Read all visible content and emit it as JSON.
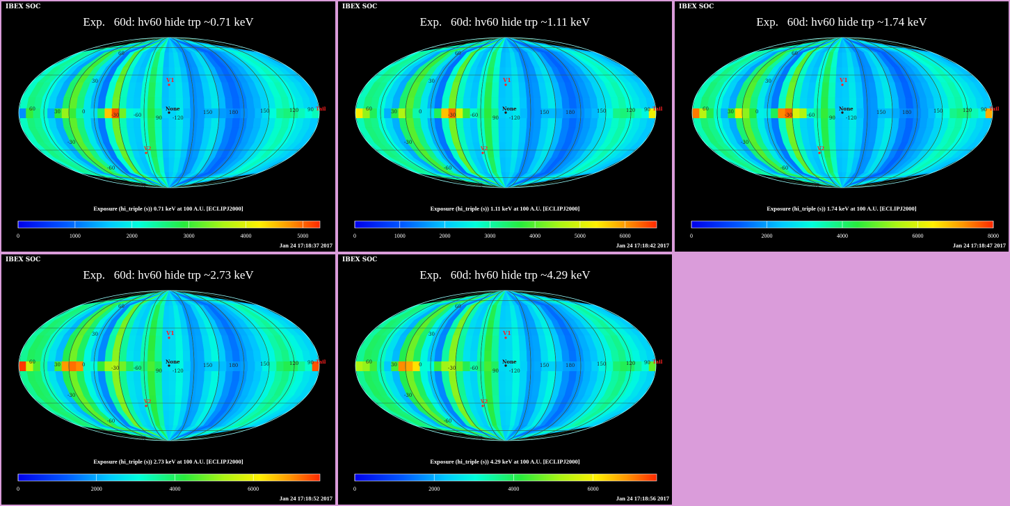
{
  "colors": {
    "background": "#da9cda",
    "panel": "#000000",
    "marker": "#ff2020"
  },
  "panels": [
    {
      "soc": "IBEX SOC",
      "title": "Exp.   60d: hv60 hide trp ~0.71 keV",
      "caption": "Exposure (hi_triple (s))  0.71 keV at 100 A.U. [ECLIPJ2000]",
      "timestamp": "Jan 24 17:18:37 2017",
      "colorbar": {
        "min": 0,
        "max": 5300,
        "ticks": [
          "0",
          "1000",
          "2000",
          "3000",
          "4000",
          "5000"
        ],
        "tick_values": [
          0,
          1000,
          2000,
          3000,
          4000,
          5000
        ]
      },
      "grid_labels": {
        "lat": [
          "60",
          "30",
          "-30",
          "-60",
          "-90"
        ],
        "lon": [
          "60",
          "30",
          "0",
          "-30",
          "-60",
          "90",
          "-120",
          "150",
          "180",
          "150",
          "120",
          "90"
        ],
        "markers": [
          "V1",
          "None",
          "V2",
          "Tail"
        ]
      },
      "chart_data": {
        "type": "heatmap",
        "projection": "Mollweide ecliptic sky map",
        "xlabel": "",
        "ylabel": "",
        "row_weights": [
          0.92,
          0.95,
          0.97,
          0.99,
          1.0,
          1.0,
          1.0,
          0.99,
          0.97,
          0.94
        ],
        "column_values": [
          2250,
          2600,
          2500,
          2100,
          1700,
          1400,
          2700,
          3200,
          2600,
          1900,
          1450,
          1050,
          2200,
          3300,
          2300,
          1700,
          1600,
          2200,
          2800,
          2300,
          1550,
          1700,
          1900,
          1600,
          1200,
          1300,
          1650,
          1900,
          1500,
          1100,
          950,
          1100,
          1300,
          1450,
          1700,
          1900,
          2200,
          2350,
          2100,
          1900,
          1750,
          1600
        ],
        "equator_band": [
          1200,
          3000,
          2600,
          2200,
          1400,
          2900,
          3500,
          3000,
          2400,
          1900,
          1800,
          2700,
          4500,
          5100,
          3300,
          2200,
          2000,
          2300,
          2900,
          2500,
          1700,
          1700,
          1900,
          1500,
          1200,
          1300,
          1500,
          1500,
          1300,
          1200,
          1100,
          1200,
          1300,
          1500,
          1800,
          2100,
          2500,
          2600,
          2500,
          2300,
          2100,
          2300
        ]
      }
    },
    {
      "soc": "IBEX SOC",
      "title": "Exp.   60d: hv60 hide trp ~1.11 keV",
      "caption": "Exposure (hi_triple (s))  1.11 keV at 100 A.U. [ECLIPJ2000]",
      "timestamp": "Jan 24 17:18:42 2017",
      "colorbar": {
        "min": 0,
        "max": 6700,
        "ticks": [
          "0",
          "1000",
          "2000",
          "3000",
          "4000",
          "5000",
          "6000"
        ],
        "tick_values": [
          0,
          1000,
          2000,
          3000,
          4000,
          5000,
          6000
        ]
      },
      "grid_labels": {
        "lat": [
          "60",
          "30",
          "-30",
          "-60",
          "-90"
        ],
        "lon": [
          "60",
          "30",
          "0",
          "-30",
          "-60",
          "90",
          "-120",
          "150",
          "180",
          "150",
          "120",
          "90"
        ],
        "markers": [
          "V1",
          "None",
          "V2",
          "Tail"
        ]
      },
      "chart_data": {
        "type": "heatmap",
        "projection": "Mollweide ecliptic sky map",
        "xlabel": "",
        "ylabel": "",
        "row_weights": [
          0.92,
          0.95,
          0.97,
          0.99,
          1.0,
          1.0,
          1.0,
          0.99,
          0.97,
          0.94
        ],
        "column_values": [
          2900,
          3300,
          3200,
          2700,
          2200,
          1800,
          3400,
          4000,
          3300,
          2400,
          1800,
          1300,
          2800,
          4200,
          2900,
          2200,
          2000,
          2800,
          3600,
          2900,
          2000,
          2100,
          2400,
          2000,
          1500,
          1600,
          2100,
          2400,
          1900,
          1400,
          1200,
          1400,
          1600,
          1800,
          2200,
          2400,
          2800,
          3000,
          2700,
          2400,
          2200,
          2000
        ],
        "equator_band": [
          5300,
          4400,
          3500,
          2800,
          1800,
          3600,
          4600,
          3900,
          3000,
          2400,
          2300,
          3500,
          5700,
          6300,
          5000,
          3800,
          2800,
          3100,
          3700,
          3200,
          2100,
          2200,
          2400,
          1900,
          1500,
          1600,
          1900,
          1900,
          1700,
          1500,
          1400,
          1500,
          1700,
          1900,
          2300,
          2600,
          3200,
          3300,
          3200,
          2900,
          2600,
          5200
        ]
      }
    },
    {
      "soc": "IBEX SOC",
      "title": "Exp.   60d: hv60 hide trp ~1.74 keV",
      "caption": "Exposure (hi_triple (s))  1.74 keV at 100 A.U. [ECLIPJ2000]",
      "timestamp": "Jan 24 17:18:47 2017",
      "colorbar": {
        "min": 0,
        "max": 8000,
        "ticks": [
          "0",
          "2000",
          "4000",
          "6000",
          "8000"
        ],
        "tick_values": [
          0,
          2000,
          4000,
          6000,
          8000
        ]
      },
      "grid_labels": {
        "lat": [
          "60",
          "30",
          "-30",
          "-60",
          "-90"
        ],
        "lon": [
          "60",
          "30",
          "0",
          "-30",
          "-60",
          "90",
          "-120",
          "150",
          "180",
          "150",
          "120",
          "90"
        ],
        "markers": [
          "V1",
          "None",
          "V2",
          "Tail"
        ]
      },
      "chart_data": {
        "type": "heatmap",
        "projection": "Mollweide ecliptic sky map",
        "xlabel": "",
        "ylabel": "",
        "row_weights": [
          0.92,
          0.95,
          0.97,
          0.99,
          1.0,
          1.0,
          1.0,
          0.99,
          0.97,
          0.94
        ],
        "column_values": [
          3500,
          4000,
          3800,
          3200,
          2600,
          2100,
          4000,
          4800,
          3900,
          2900,
          2200,
          1600,
          3400,
          5000,
          3500,
          2600,
          2400,
          3300,
          4300,
          3500,
          2400,
          2500,
          2900,
          2400,
          1800,
          1900,
          2500,
          2900,
          2300,
          1700,
          1400,
          1700,
          2000,
          2200,
          2600,
          2900,
          3400,
          3600,
          3200,
          2900,
          2600,
          2400
        ],
        "equator_band": [
          7400,
          5600,
          4300,
          3400,
          2200,
          4400,
          6500,
          5200,
          4400,
          3000,
          2900,
          4200,
          7300,
          7600,
          6000,
          5500,
          3400,
          3700,
          4500,
          3900,
          2500,
          2600,
          2900,
          2300,
          1800,
          1900,
          2300,
          2300,
          2100,
          1800,
          1700,
          1800,
          2000,
          2300,
          2800,
          3200,
          3800,
          4000,
          3900,
          3500,
          3100,
          7000
        ]
      }
    },
    {
      "soc": "IBEX SOC",
      "title": "Exp.   60d: hv60 hide trp ~2.73 keV",
      "caption": "Exposure (hi_triple (s))  2.73 keV at 100 A.U. [ECLIPJ2000]",
      "timestamp": "Jan 24 17:18:52 2017",
      "colorbar": {
        "min": 0,
        "max": 7700,
        "ticks": [
          "0",
          "2000",
          "4000",
          "6000"
        ],
        "tick_values": [
          0,
          2000,
          4000,
          6000
        ]
      },
      "grid_labels": {
        "lat": [
          "60",
          "30",
          "-30",
          "-60",
          "-90"
        ],
        "lon": [
          "60",
          "30",
          "0",
          "-30",
          "-60",
          "90",
          "-120",
          "150",
          "180",
          "150",
          "120",
          "90"
        ],
        "markers": [
          "V1",
          "None",
          "V2",
          "Tail"
        ]
      },
      "chart_data": {
        "type": "heatmap",
        "projection": "Mollweide ecliptic sky map",
        "xlabel": "",
        "ylabel": "",
        "row_weights": [
          0.92,
          0.95,
          0.97,
          0.99,
          1.0,
          1.0,
          1.0,
          0.99,
          0.97,
          0.94
        ],
        "column_values": [
          3600,
          4000,
          3900,
          3300,
          2700,
          2200,
          4100,
          4800,
          4000,
          3000,
          2300,
          1700,
          3500,
          5000,
          3600,
          2700,
          2500,
          3400,
          4300,
          3600,
          2500,
          2600,
          3000,
          2500,
          1900,
          2000,
          2600,
          3000,
          2400,
          1800,
          1500,
          1800,
          2100,
          2300,
          2700,
          3000,
          3500,
          3700,
          3300,
          3000,
          2700,
          2500
        ],
        "equator_band": [
          7600,
          5500,
          4500,
          3400,
          2300,
          4500,
          6900,
          7200,
          7000,
          3200,
          3000,
          4300,
          5200,
          5300,
          4800,
          4000,
          3500,
          3800,
          4500,
          4000,
          2600,
          2700,
          3000,
          2400,
          1900,
          2000,
          2400,
          2400,
          2200,
          1900,
          1800,
          1900,
          2100,
          2400,
          2900,
          3300,
          3900,
          4100,
          4000,
          3600,
          3200,
          7400
        ]
      }
    },
    {
      "soc": "IBEX SOC",
      "title": "Exp.   60d: hv60 hide trp ~4.29 keV",
      "caption": "Exposure (hi_triple (s))  4.29 keV at 100 A.U. [ECLIPJ2000]",
      "timestamp": "Jan 24 17:18:56 2017",
      "colorbar": {
        "min": 0,
        "max": 7600,
        "ticks": [
          "0",
          "2000",
          "4000",
          "6000"
        ],
        "tick_values": [
          0,
          2000,
          4000,
          6000
        ]
      },
      "grid_labels": {
        "lat": [
          "60",
          "30",
          "-30",
          "-60",
          "-90"
        ],
        "lon": [
          "60",
          "30",
          "0",
          "-30",
          "-60",
          "90",
          "-120",
          "150",
          "180",
          "150",
          "120",
          "90"
        ],
        "markers": [
          "V1",
          "None",
          "V2",
          "Tail"
        ]
      },
      "chart_data": {
        "type": "heatmap",
        "projection": "Mollweide ecliptic sky map",
        "xlabel": "",
        "ylabel": "",
        "row_weights": [
          0.92,
          0.95,
          0.97,
          0.99,
          1.0,
          1.0,
          1.0,
          0.99,
          0.97,
          0.94
        ],
        "column_values": [
          3550,
          3950,
          3850,
          3250,
          2650,
          2150,
          4050,
          4750,
          3950,
          2950,
          2250,
          1650,
          3450,
          4950,
          3550,
          2650,
          2450,
          3350,
          4250,
          3550,
          2450,
          2550,
          2950,
          2450,
          1850,
          1950,
          2550,
          2950,
          2350,
          1750,
          1450,
          1750,
          2050,
          2250,
          2650,
          2950,
          3450,
          3650,
          3250,
          2950,
          2650,
          2450
        ],
        "equator_band": [
          5200,
          5000,
          4400,
          3400,
          2300,
          4400,
          6900,
          6700,
          6200,
          3100,
          3000,
          4300,
          5100,
          5200,
          4700,
          4000,
          3400,
          3700,
          4400,
          3900,
          2500,
          2600,
          2900,
          2400,
          1900,
          2000,
          2400,
          2400,
          2100,
          1900,
          1800,
          1900,
          2100,
          2400,
          2900,
          3200,
          3800,
          4000,
          3900,
          3500,
          3100,
          4600
        ]
      }
    }
  ]
}
